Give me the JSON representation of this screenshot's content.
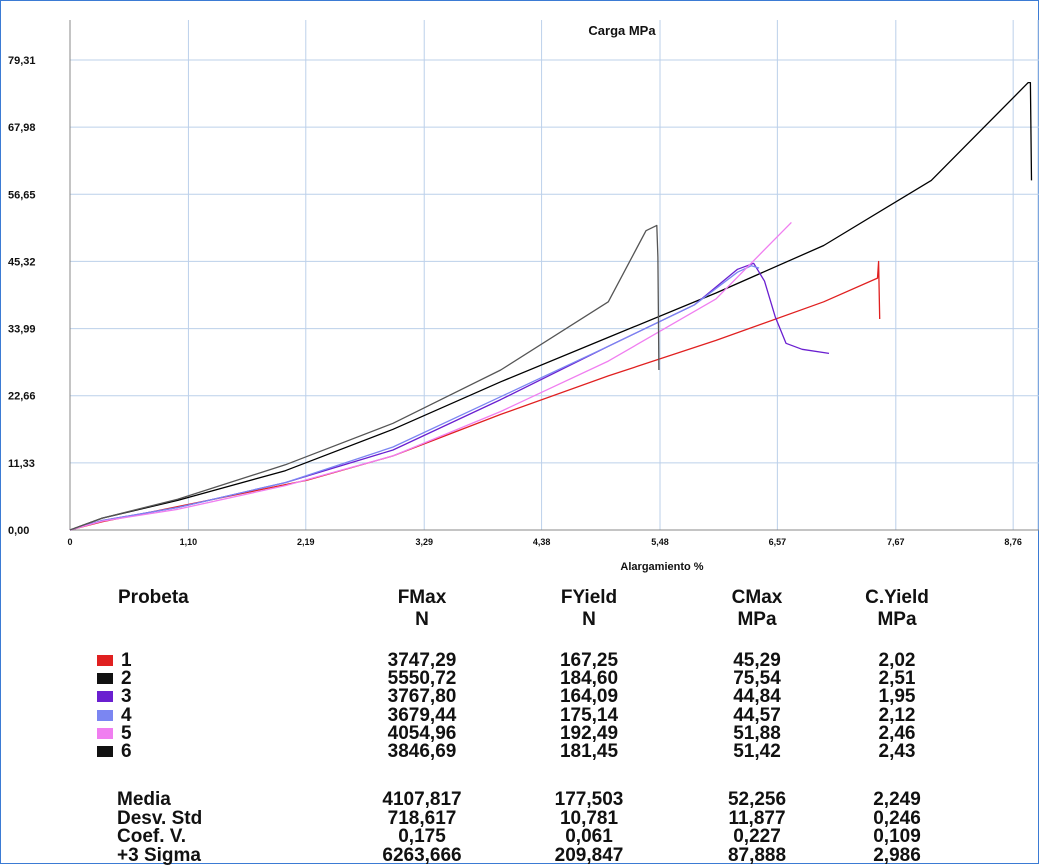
{
  "chart_data": {
    "type": "line",
    "title": "Carga  MPa",
    "xlabel": "Alargamiento  %",
    "ylabel": "",
    "xlim": [
      0,
      9.0
    ],
    "ylim": [
      0,
      79.31
    ],
    "x_ticks": [
      "0",
      "1,10",
      "2,19",
      "3,29",
      "4,38",
      "5,48",
      "6,57",
      "7,67",
      "8,76"
    ],
    "x_tick_values": [
      0,
      1.1,
      2.19,
      3.29,
      4.38,
      5.48,
      6.57,
      7.67,
      8.76
    ],
    "y_ticks": [
      "0,00",
      "11,33",
      "22,66",
      "33,99",
      "45,32",
      "56,65",
      "67,98",
      "79,31"
    ],
    "y_tick_values": [
      0,
      11.33,
      22.66,
      33.99,
      45.32,
      56.65,
      67.98,
      79.31
    ],
    "grid": true,
    "series": [
      {
        "name": "1",
        "color": "#e02020",
        "points": [
          [
            0,
            0
          ],
          [
            0.3,
            1.4
          ],
          [
            0.8,
            3.2
          ],
          [
            1.5,
            5.8
          ],
          [
            2.2,
            8.4
          ],
          [
            3.0,
            12.5
          ],
          [
            4.0,
            19.5
          ],
          [
            5.0,
            26.0
          ],
          [
            6.0,
            32.0
          ],
          [
            7.0,
            38.5
          ],
          [
            7.5,
            42.5
          ],
          [
            7.51,
            45.3
          ],
          [
            7.52,
            35.6
          ]
        ]
      },
      {
        "name": "2",
        "color": "#000000",
        "points": [
          [
            0,
            0
          ],
          [
            0.3,
            2.0
          ],
          [
            1.0,
            5.0
          ],
          [
            2.0,
            10.0
          ],
          [
            3.0,
            17.0
          ],
          [
            4.0,
            25.0
          ],
          [
            5.0,
            32.5
          ],
          [
            6.0,
            40.0
          ],
          [
            7.0,
            48.0
          ],
          [
            8.0,
            59.0
          ],
          [
            8.9,
            75.5
          ],
          [
            8.92,
            75.5
          ],
          [
            8.93,
            59.0
          ]
        ]
      },
      {
        "name": "3",
        "color": "#6a1fd0",
        "points": [
          [
            0,
            0
          ],
          [
            0.3,
            1.6
          ],
          [
            1.0,
            3.8
          ],
          [
            2.0,
            8.0
          ],
          [
            3.0,
            13.5
          ],
          [
            4.0,
            22.0
          ],
          [
            5.0,
            31.0
          ],
          [
            5.8,
            38.0
          ],
          [
            6.2,
            44.0
          ],
          [
            6.35,
            45.0
          ],
          [
            6.45,
            42.0
          ],
          [
            6.55,
            36.0
          ],
          [
            6.65,
            31.5
          ],
          [
            6.8,
            30.5
          ],
          [
            7.05,
            29.8
          ]
        ]
      },
      {
        "name": "4",
        "color": "#7b86f2",
        "points": [
          [
            0,
            0
          ],
          [
            0.3,
            1.6
          ],
          [
            1.0,
            3.8
          ],
          [
            2.0,
            8.0
          ],
          [
            3.0,
            14.0
          ],
          [
            4.0,
            22.5
          ],
          [
            5.0,
            31.0
          ],
          [
            5.8,
            38.0
          ],
          [
            6.2,
            43.5
          ],
          [
            6.33,
            44.6
          ],
          [
            6.4,
            44.2
          ]
        ]
      },
      {
        "name": "5",
        "color": "#f07ef0",
        "points": [
          [
            0,
            0
          ],
          [
            0.3,
            1.5
          ],
          [
            1.0,
            3.5
          ],
          [
            2.0,
            7.5
          ],
          [
            3.0,
            12.5
          ],
          [
            4.0,
            20.0
          ],
          [
            5.0,
            28.5
          ],
          [
            6.0,
            39.0
          ],
          [
            6.7,
            51.9
          ]
        ]
      },
      {
        "name": "6",
        "color": "#555555",
        "points": [
          [
            0,
            0
          ],
          [
            0.3,
            2.0
          ],
          [
            1.0,
            5.2
          ],
          [
            2.0,
            11.0
          ],
          [
            3.0,
            18.0
          ],
          [
            4.0,
            27.0
          ],
          [
            5.0,
            38.5
          ],
          [
            5.35,
            50.5
          ],
          [
            5.45,
            51.4
          ],
          [
            5.46,
            46.0
          ],
          [
            5.47,
            27.0
          ]
        ]
      }
    ]
  },
  "table": {
    "headers": {
      "probeta": "Probeta",
      "fmax": "FMax",
      "fmax_unit": "N",
      "fyield": "FYield",
      "fyield_unit": "N",
      "cmax": "CMax",
      "cmax_unit": "MPa",
      "cyield": "C.Yield",
      "cyield_unit": "MPa"
    },
    "rows": [
      {
        "id": "1",
        "color": "#e02020",
        "fmax": "3747,29",
        "fyield": "167,25",
        "cmax": "45,29",
        "cyield": "2,02"
      },
      {
        "id": "2",
        "color": "#111111",
        "fmax": "5550,72",
        "fyield": "184,60",
        "cmax": "75,54",
        "cyield": "2,51"
      },
      {
        "id": "3",
        "color": "#6a1fd0",
        "fmax": "3767,80",
        "fyield": "164,09",
        "cmax": "44,84",
        "cyield": "1,95"
      },
      {
        "id": "4",
        "color": "#7b86f2",
        "fmax": "3679,44",
        "fyield": "175,14",
        "cmax": "44,57",
        "cyield": "2,12"
      },
      {
        "id": "5",
        "color": "#f07ef0",
        "fmax": "4054,96",
        "fyield": "192,49",
        "cmax": "51,88",
        "cyield": "2,46"
      },
      {
        "id": "6",
        "color": "#111111",
        "fmax": "3846,69",
        "fyield": "181,45",
        "cmax": "51,42",
        "cyield": "2,43"
      }
    ],
    "stats": [
      {
        "label": "Media",
        "fmax": "4107,817",
        "fyield": "177,503",
        "cmax": "52,256",
        "cyield": "2,249"
      },
      {
        "label": "Desv. Std",
        "fmax": "718,617",
        "fyield": "10,781",
        "cmax": "11,877",
        "cyield": "0,246"
      },
      {
        "label": "Coef. V.",
        "fmax": "0,175",
        "fyield": "0,061",
        "cmax": "0,227",
        "cyield": "0,109"
      },
      {
        "label": "+3 Sigma",
        "fmax": "6263,666",
        "fyield": "209,847",
        "cmax": "87,888",
        "cyield": "2,986"
      }
    ]
  }
}
